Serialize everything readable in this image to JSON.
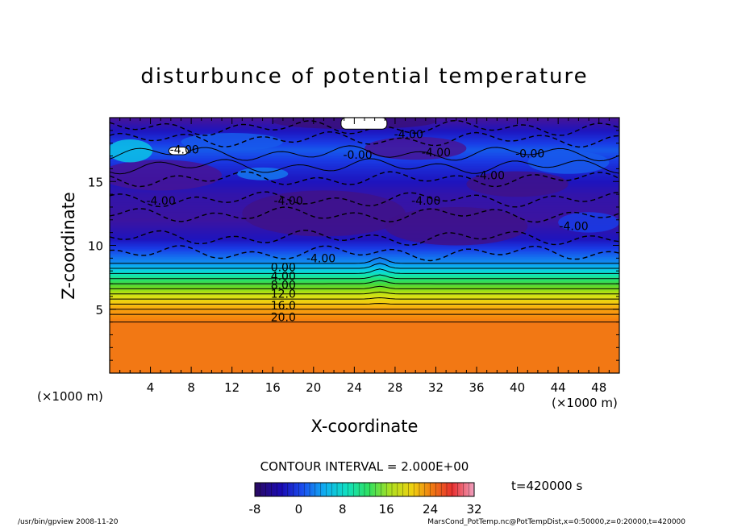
{
  "chart_data": {
    "type": "heatmap",
    "title": "disturbunce of potential temperature",
    "xlabel": "X-coordinate",
    "ylabel": "Z-coordinate",
    "x_unit": "(×1000 m)",
    "y_unit": "(×1000 m)",
    "xlim": [
      0,
      50
    ],
    "ylim": [
      0,
      20
    ],
    "x_ticks": [
      4,
      8,
      12,
      16,
      20,
      24,
      28,
      32,
      36,
      40,
      44,
      48
    ],
    "y_ticks": [
      5,
      10,
      15
    ],
    "grid": false,
    "contour_interval_label": "CONTOUR INTERVAL = 2.000E+00",
    "time_label": "t=420000 s",
    "colorbar": {
      "min": -8,
      "max": 32,
      "ticks": [
        -8,
        0,
        8,
        16,
        24,
        32
      ],
      "tick_labels": [
        "-8",
        "0",
        "8",
        "16",
        "24",
        "32"
      ]
    },
    "profile": [
      {
        "z": 0,
        "value": 25
      },
      {
        "z": 4,
        "value": 25
      },
      {
        "z": 4.2,
        "value": 22
      },
      {
        "z": 5,
        "value": 20
      },
      {
        "z": 6,
        "value": 16
      },
      {
        "z": 7,
        "value": 10
      },
      {
        "z": 8,
        "value": 4
      },
      {
        "z": 8.6,
        "value": 1
      },
      {
        "z": 9.4,
        "value": -1
      },
      {
        "z": 10.5,
        "value": -4
      },
      {
        "z": 12,
        "value": -5.5
      },
      {
        "z": 14,
        "value": -5
      },
      {
        "z": 16,
        "value": -3
      },
      {
        "z": 17.5,
        "value": -1
      },
      {
        "z": 19,
        "value": -4
      },
      {
        "z": 20,
        "value": -6
      }
    ],
    "contour_labels": [
      {
        "text": "0.00",
        "x": 15.8,
        "z": 8.3
      },
      {
        "text": "4.00",
        "x": 15.8,
        "z": 7.6
      },
      {
        "text": "8.00",
        "x": 15.8,
        "z": 6.9
      },
      {
        "text": "12.0",
        "x": 15.8,
        "z": 6.2
      },
      {
        "text": "16.0",
        "x": 15.8,
        "z": 5.3
      },
      {
        "text": "20.0",
        "x": 15.8,
        "z": 4.4
      },
      {
        "text": "-4.00",
        "x": 19.3,
        "z": 9.0
      },
      {
        "text": "-4.00",
        "x": 16.1,
        "z": 13.5
      },
      {
        "text": "-4.00",
        "x": 3.6,
        "z": 13.5
      },
      {
        "text": "-4.00",
        "x": 29.6,
        "z": 13.5
      },
      {
        "text": "-4.00",
        "x": 44.1,
        "z": 11.5
      },
      {
        "text": "-4.00",
        "x": 35.9,
        "z": 15.5
      },
      {
        "text": "-4.00",
        "x": 5.9,
        "z": 17.5
      },
      {
        "text": "-4.00",
        "x": 27.9,
        "z": 18.7
      },
      {
        "text": "-0.00",
        "x": 22.9,
        "z": 17.1
      },
      {
        "text": "-0.00",
        "x": 39.8,
        "z": 17.2
      },
      {
        "text": "-4.00",
        "x": 30.6,
        "z": 17.3
      }
    ],
    "white_patches": [
      {
        "x": [
          22.7,
          27.2
        ],
        "z": [
          19.1,
          20
        ]
      },
      {
        "x": [
          5.8,
          7.7
        ],
        "z": [
          17.1,
          17.7
        ]
      }
    ]
  },
  "footer": {
    "left": "/usr/bin/gpview  2008-11-20",
    "right": "MarsCond_PotTemp.nc@PotTempDist,x=0:50000,z=0:20000,t=420000"
  }
}
